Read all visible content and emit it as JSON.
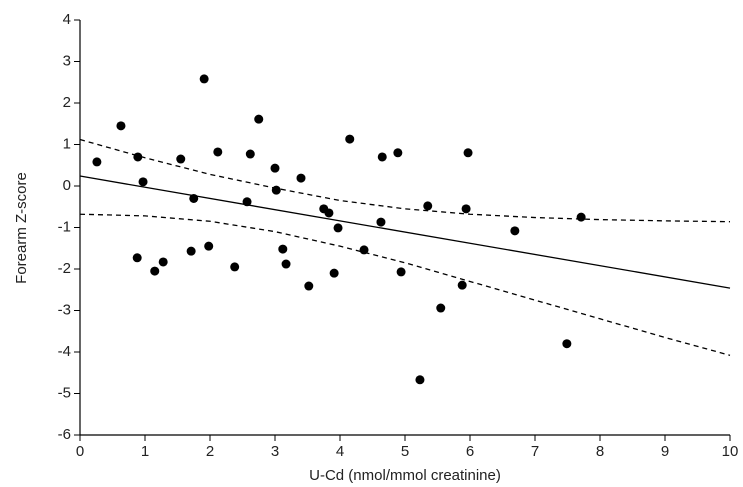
{
  "chart_data": {
    "type": "scatter",
    "xlabel": "U-Cd (nmol/mmol creatinine)",
    "ylabel": "Forearm Z-score",
    "xlim": [
      0,
      10
    ],
    "xticks": [
      0,
      1,
      2,
      3,
      4,
      5,
      6,
      7,
      8,
      9,
      10
    ],
    "ylim": [
      -6,
      4
    ],
    "yticks": [
      -6,
      -5,
      -4,
      -3,
      -2,
      -1,
      0,
      1,
      2,
      3,
      4
    ],
    "color": "#000000",
    "x": [
      0.26,
      0.63,
      0.89,
      0.97,
      0.88,
      1.15,
      1.28,
      1.55,
      1.75,
      1.71,
      1.91,
      1.98,
      2.12,
      2.38,
      2.57,
      2.62,
      2.75,
      3.0,
      3.02,
      3.12,
      3.17,
      3.4,
      3.52,
      3.75,
      3.83,
      3.97,
      3.91,
      4.15,
      4.37,
      4.65,
      4.63,
      4.89,
      4.94,
      5.35,
      5.23,
      5.55,
      5.94,
      5.97,
      5.88,
      6.69,
      7.49,
      7.71
    ],
    "values": [
      0.58,
      1.45,
      0.7,
      0.1,
      -1.73,
      -2.05,
      -1.83,
      0.65,
      -0.3,
      -1.57,
      2.58,
      -1.45,
      0.82,
      -1.95,
      -0.38,
      0.77,
      1.61,
      0.43,
      -0.1,
      -1.52,
      -1.88,
      0.19,
      -2.41,
      -0.55,
      -0.65,
      -1.01,
      -2.1,
      1.13,
      -1.54,
      0.7,
      -0.87,
      0.8,
      -2.07,
      -0.48,
      -4.67,
      -2.94,
      -0.55,
      0.8,
      -2.39,
      -1.08,
      -3.8,
      -0.75
    ],
    "fit_line": {
      "x": [
        0,
        10
      ],
      "values": [
        0.24,
        -2.46
      ]
    },
    "confidence_band": {
      "x": [
        0,
        1,
        2,
        3,
        4,
        5,
        6,
        7,
        8,
        9,
        10
      ],
      "upper": [
        1.12,
        0.68,
        0.28,
        -0.05,
        -0.35,
        -0.55,
        -0.68,
        -0.76,
        -0.81,
        -0.84,
        -0.86
      ],
      "lower": [
        -0.68,
        -0.72,
        -0.85,
        -1.1,
        -1.45,
        -1.85,
        -2.3,
        -2.75,
        -3.2,
        -3.65,
        -4.08
      ]
    }
  }
}
